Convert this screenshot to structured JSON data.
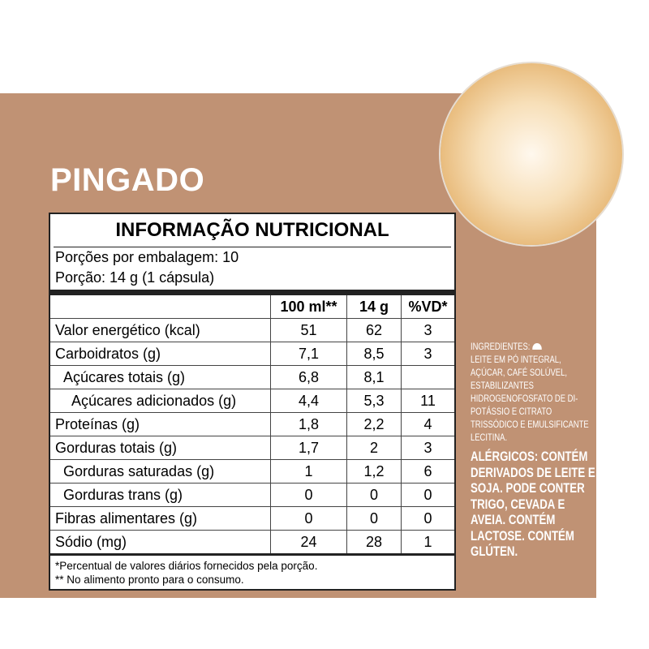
{
  "product_name": "PINGADO",
  "label": {
    "title": "INFORMAÇÃO NUTRICIONAL",
    "servings_per_package": "Porções por embalagem: 10",
    "serving_size": "Porção: 14 g (1 cápsula)",
    "columns": [
      "100 ml**",
      "14 g",
      "%VD*"
    ],
    "rows": [
      {
        "name": "Valor energético (kcal)",
        "v100": "51",
        "vport": "62",
        "vd": "3",
        "indent": 0
      },
      {
        "name": "Carboidratos (g)",
        "v100": "7,1",
        "vport": "8,5",
        "vd": "3",
        "indent": 0
      },
      {
        "name": "Açúcares totais (g)",
        "v100": "6,8",
        "vport": "8,1",
        "vd": "",
        "indent": 1
      },
      {
        "name": "Açúcares adicionados (g)",
        "v100": "4,4",
        "vport": "5,3",
        "vd": "11",
        "indent": 2
      },
      {
        "name": "Proteínas (g)",
        "v100": "1,8",
        "vport": "2,2",
        "vd": "4",
        "indent": 0
      },
      {
        "name": "Gorduras totais (g)",
        "v100": "1,7",
        "vport": "2",
        "vd": "3",
        "indent": 0
      },
      {
        "name": "Gorduras saturadas (g)",
        "v100": "1",
        "vport": "1,2",
        "vd": "6",
        "indent": 1
      },
      {
        "name": "Gorduras trans (g)",
        "v100": "0",
        "vport": "0",
        "vd": "0",
        "indent": 1
      },
      {
        "name": "Fibras alimentares (g)",
        "v100": "0",
        "vport": "0",
        "vd": "0",
        "indent": 0
      },
      {
        "name": "Sódio (mg)",
        "v100": "24",
        "vport": "28",
        "vd": "1",
        "indent": 0
      }
    ],
    "footnote1": "*Percentual de valores diários fornecidos pela porção.",
    "footnote2": "** No alimento pronto para o consumo."
  },
  "ingredients": {
    "heading": "INGREDIENTES:",
    "text": "LEITE EM PÓ INTEGRAL, AÇÚCAR, CAFÉ SOLÚVEL, ESTABILIZANTES HIDROGENOFOSFATO DE DI-POTÁSSIO E CITRATO TRISSÓDICO E EMULSIFICANTE LECITINA."
  },
  "allergens": "ALÉRGICOS: CONTÉM DERIVADOS DE LEITE E SOJA. PODE CONTER TRIGO, CEVADA E AVEIA. CONTÉM LACTOSE. CONTÉM GLÚTEN.",
  "colors": {
    "background": "#c09274",
    "text_on_bg": "#ffffff"
  }
}
